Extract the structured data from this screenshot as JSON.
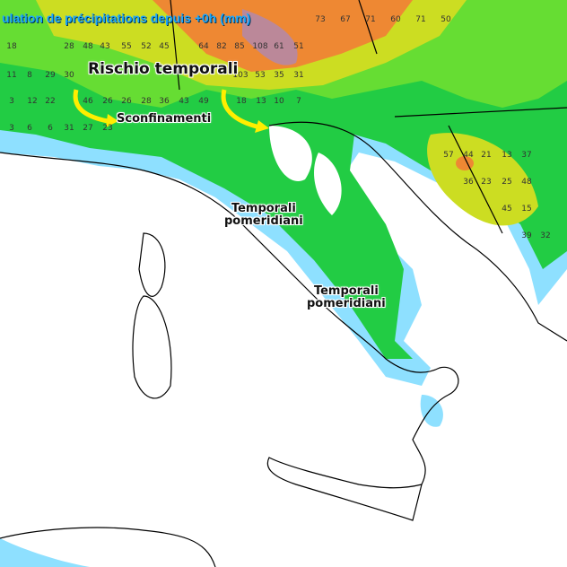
{
  "title": "ulation de précipitations depuis +0h (mm)",
  "annotations": {
    "risk": "Rischio temporali",
    "spillover": "Sconfinamenti",
    "afternoon_1_line1": "Temporali",
    "afternoon_1_line2": "pomeridiani",
    "afternoon_2_line1": "Temporali",
    "afternoon_2_line2": "pomeridiani"
  },
  "colors": {
    "arrow": "#ffee00",
    "title": "#1aa7ff",
    "land_dry": "#ffffff",
    "light": "#8ee0ff",
    "moderate": "#22cc44",
    "heavy": "#ccdd22",
    "very_heavy": "#ee8833",
    "extreme": "#bb8899"
  },
  "values": [
    {
      "v": "73"
    },
    {
      "v": "67"
    },
    {
      "v": "71"
    },
    {
      "v": "60"
    },
    {
      "v": "71"
    },
    {
      "v": "50"
    },
    {
      "v": "18"
    },
    {
      "v": "28"
    },
    {
      "v": "48"
    },
    {
      "v": "43"
    },
    {
      "v": "55"
    },
    {
      "v": "52"
    },
    {
      "v": "45"
    },
    {
      "v": "64"
    },
    {
      "v": "82"
    },
    {
      "v": "85"
    },
    {
      "v": "108"
    },
    {
      "v": "61"
    },
    {
      "v": "51"
    },
    {
      "v": "11"
    },
    {
      "v": "8"
    },
    {
      "v": "29"
    },
    {
      "v": "30"
    },
    {
      "v": "103"
    },
    {
      "v": "53"
    },
    {
      "v": "35"
    },
    {
      "v": "31"
    },
    {
      "v": "3"
    },
    {
      "v": "12"
    },
    {
      "v": "22"
    },
    {
      "v": "46"
    },
    {
      "v": "26"
    },
    {
      "v": "26"
    },
    {
      "v": "28"
    },
    {
      "v": "36"
    },
    {
      "v": "43"
    },
    {
      "v": "49"
    },
    {
      "v": "18"
    },
    {
      "v": "13"
    },
    {
      "v": "10"
    },
    {
      "v": "7"
    },
    {
      "v": "3"
    },
    {
      "v": "6"
    },
    {
      "v": "6"
    },
    {
      "v": "31"
    },
    {
      "v": "27"
    },
    {
      "v": "23"
    },
    {
      "v": "57"
    },
    {
      "v": "44"
    },
    {
      "v": "21"
    },
    {
      "v": "13"
    },
    {
      "v": "37"
    },
    {
      "v": "36"
    },
    {
      "v": "23"
    },
    {
      "v": "25"
    },
    {
      "v": "48"
    },
    {
      "v": "45"
    },
    {
      "v": "15"
    },
    {
      "v": "39"
    },
    {
      "v": "32"
    }
  ]
}
